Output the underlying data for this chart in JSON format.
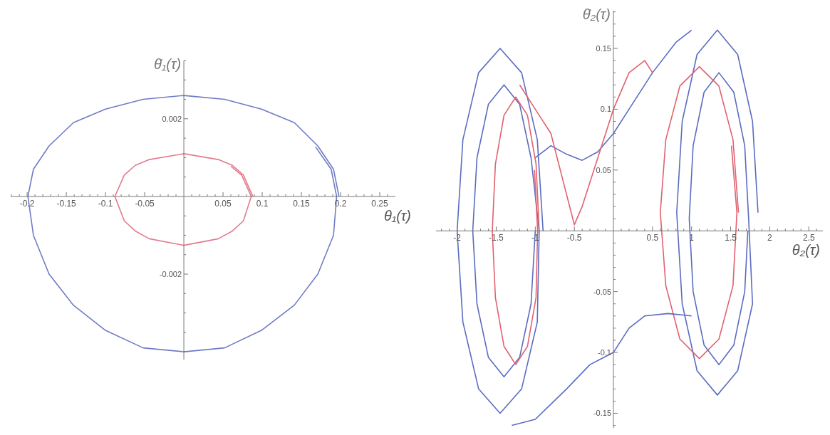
{
  "chart_data": [
    {
      "type": "line",
      "xlabel": "θ₁(τ)",
      "ylabel": "θ̇₁(τ)",
      "xlim": [
        -0.221,
        0.27
      ],
      "ylim": [
        -0.0042,
        0.0035
      ],
      "xticks": [
        {
          "value": -0.22,
          "label": null
        },
        {
          "value": -0.21,
          "label": null
        },
        -0.2,
        {
          "value": -0.19,
          "label": null
        },
        {
          "value": -0.18,
          "label": null
        },
        {
          "value": -0.17,
          "label": null
        },
        {
          "value": -0.16,
          "label": null
        },
        -0.15,
        {
          "value": -0.14,
          "label": null
        },
        {
          "value": -0.13,
          "label": null
        },
        {
          "value": -0.12,
          "label": null
        },
        {
          "value": -0.11,
          "label": null
        },
        -0.1,
        {
          "value": -0.09,
          "label": null
        },
        {
          "value": -0.08,
          "label": null
        },
        {
          "value": -0.07,
          "label": null
        },
        {
          "value": -0.06,
          "label": null
        },
        -0.05,
        {
          "value": -0.04,
          "label": null
        },
        {
          "value": -0.03,
          "label": null
        },
        {
          "value": -0.02,
          "label": null
        },
        {
          "value": -0.01,
          "label": null
        },
        {
          "value": 0.01,
          "label": null
        },
        {
          "value": 0.02,
          "label": null
        },
        {
          "value": 0.03,
          "label": null
        },
        {
          "value": 0.04,
          "label": null
        },
        0.05,
        {
          "value": 0.06,
          "label": null
        },
        {
          "value": 0.07,
          "label": null
        },
        {
          "value": 0.08,
          "label": null
        },
        {
          "value": 0.09,
          "label": null
        },
        0.1,
        {
          "value": 0.11,
          "label": null
        },
        {
          "value": 0.12,
          "label": null
        },
        {
          "value": 0.13,
          "label": null
        },
        {
          "value": 0.14,
          "label": null
        },
        0.15,
        {
          "value": 0.16,
          "label": null
        },
        {
          "value": 0.17,
          "label": null
        },
        {
          "value": 0.18,
          "label": null
        },
        {
          "value": 0.19,
          "label": null
        },
        0.2,
        {
          "value": 0.21,
          "label": null
        },
        {
          "value": 0.22,
          "label": null
        },
        {
          "value": 0.23,
          "label": null
        },
        {
          "value": 0.24,
          "label": null
        },
        0.25,
        {
          "value": 0.26,
          "label": null
        }
      ],
      "yticks": [
        {
          "value": -0.004,
          "label": null
        },
        {
          "value": -0.0035,
          "label": null
        },
        {
          "value": -0.003,
          "label": null
        },
        {
          "value": -0.0025,
          "label": null
        },
        -0.002,
        {
          "value": -0.0015,
          "label": null
        },
        {
          "value": -0.001,
          "label": null
        },
        {
          "value": -0.0005,
          "label": null
        },
        {
          "value": 0.0005,
          "label": null
        },
        {
          "value": 0.001,
          "label": null
        },
        {
          "value": 0.0015,
          "label": null
        },
        0.002,
        {
          "value": 0.0025,
          "label": null
        },
        {
          "value": 0.003,
          "label": null
        },
        {
          "value": 0.0035,
          "label": null
        }
      ],
      "series": [
        {
          "color": "#6f7cc6",
          "x": [
            0.198,
            0.191,
            0.171,
            0.141,
            0.099,
            0.052,
            0,
            -0.052,
            -0.1,
            -0.141,
            -0.172,
            -0.192,
            -0.199,
            -0.192,
            -0.172,
            -0.141,
            -0.1,
            -0.052,
            0,
            0.052,
            0.099,
            0.141,
            0.171,
            0.191,
            0.195,
            0.188,
            0.168
          ],
          "values": [
            0,
            0.0007,
            0.0013,
            0.0019,
            0.00225,
            0.0025,
            0.0026,
            0.0025,
            0.00225,
            0.0019,
            0.0013,
            0.0007,
            0,
            -0.001,
            -0.002,
            -0.0028,
            -0.00345,
            -0.0039,
            -0.004,
            -0.0039,
            -0.00345,
            -0.0028,
            -0.002,
            -0.001,
            0,
            0.0007,
            0.00128
          ]
        },
        {
          "color": "#e27b8c",
          "x": [
            0.088,
            0.076,
            0.062,
            0.044,
            0,
            -0.044,
            -0.062,
            -0.076,
            -0.088,
            -0.076,
            -0.062,
            -0.044,
            0,
            0.044,
            0.062,
            0.076,
            0.086,
            0.074,
            0.06
          ],
          "values": [
            0,
            0.00055,
            0.0008,
            0.00095,
            0.0011,
            0.00095,
            0.0008,
            0.00055,
            0,
            -0.00063,
            -0.00089,
            -0.00109,
            -0.00126,
            -0.00109,
            -0.00089,
            -0.00063,
            0,
            0.00054,
            0.00078
          ]
        }
      ]
    },
    {
      "type": "line",
      "xlabel": "θ₂(τ)",
      "ylabel": "θ̇₂(τ)",
      "xlim": [
        -2.27,
        2.68
      ],
      "ylim": [
        -0.162,
        0.181
      ],
      "xticks": [
        {
          "value": -2.2,
          "label": null
        },
        {
          "value": -2.1,
          "label": null
        },
        -2,
        {
          "value": -1.9,
          "label": null
        },
        {
          "value": -1.8,
          "label": null
        },
        {
          "value": -1.7,
          "label": null
        },
        {
          "value": -1.6,
          "label": null
        },
        -1.5,
        {
          "value": -1.4,
          "label": null
        },
        {
          "value": -1.3,
          "label": null
        },
        {
          "value": -1.2,
          "label": null
        },
        {
          "value": -1.1,
          "label": null
        },
        -1,
        {
          "value": -0.9,
          "label": null
        },
        {
          "value": -0.8,
          "label": null
        },
        {
          "value": -0.7,
          "label": null
        },
        {
          "value": -0.6,
          "label": null
        },
        -0.5,
        {
          "value": -0.4,
          "label": null
        },
        {
          "value": -0.3,
          "label": null
        },
        {
          "value": -0.2,
          "label": null
        },
        {
          "value": -0.1,
          "label": null
        },
        {
          "value": 0.1,
          "label": null
        },
        {
          "value": 0.2,
          "label": null
        },
        {
          "value": 0.3,
          "label": null
        },
        {
          "value": 0.4,
          "label": null
        },
        0.5,
        {
          "value": 0.6,
          "label": null
        },
        {
          "value": 0.7,
          "label": null
        },
        {
          "value": 0.8,
          "label": null
        },
        {
          "value": 0.9,
          "label": null
        },
        1,
        {
          "value": 1.1,
          "label": null
        },
        {
          "value": 1.2,
          "label": null
        },
        {
          "value": 1.3,
          "label": null
        },
        {
          "value": 1.4,
          "label": null
        },
        1.5,
        {
          "value": 1.6,
          "label": null
        },
        {
          "value": 1.7,
          "label": null
        },
        {
          "value": 1.8,
          "label": null
        },
        {
          "value": 1.9,
          "label": null
        },
        2,
        {
          "value": 2.1,
          "label": null
        },
        {
          "value": 2.2,
          "label": null
        },
        {
          "value": 2.3,
          "label": null
        },
        {
          "value": 2.4,
          "label": null
        },
        2.5,
        {
          "value": 2.6,
          "label": null
        }
      ],
      "yticks": [
        {
          "value": -0.16,
          "label": null
        },
        -0.15,
        {
          "value": -0.14,
          "label": null
        },
        {
          "value": -0.13,
          "label": null
        },
        {
          "value": -0.12,
          "label": null
        },
        {
          "value": -0.11,
          "label": null
        },
        -0.1,
        {
          "value": -0.09,
          "label": null
        },
        {
          "value": -0.08,
          "label": null
        },
        {
          "value": -0.07,
          "label": null
        },
        {
          "value": -0.06,
          "label": null
        },
        -0.05,
        {
          "value": -0.04,
          "label": null
        },
        {
          "value": -0.03,
          "label": null
        },
        {
          "value": -0.02,
          "label": null
        },
        {
          "value": -0.01,
          "label": null
        },
        {
          "value": 0.01,
          "label": null
        },
        {
          "value": 0.02,
          "label": null
        },
        {
          "value": 0.03,
          "label": null
        },
        {
          "value": 0.04,
          "label": null
        },
        0.05,
        {
          "value": 0.06,
          "label": null
        },
        {
          "value": 0.07,
          "label": null
        },
        {
          "value": 0.08,
          "label": null
        },
        {
          "value": 0.09,
          "label": null
        },
        0.1,
        {
          "value": 0.11,
          "label": null
        },
        {
          "value": 0.12,
          "label": null
        },
        {
          "value": 0.13,
          "label": null
        },
        {
          "value": 0.14,
          "label": null
        },
        0.15,
        {
          "value": 0.16,
          "label": null
        },
        {
          "value": 0.17,
          "label": null
        },
        {
          "value": 0.18,
          "label": null
        }
      ],
      "series": [
        {
          "color": "#5b6cc0",
          "x": [
            -0.9,
            -0.974,
            -1.175,
            -1.45,
            -1.725,
            -1.926,
            -2.0,
            -1.926,
            -1.725,
            -1.45,
            -1.175,
            -0.974,
            -0.95,
            -1.054,
            -1.2,
            -1.4,
            -1.6,
            -1.746,
            -1.8,
            -1.746,
            -1.6,
            -1.4,
            -1.2,
            -1.054,
            -1.0
          ],
          "values": [
            0,
            0.075,
            0.13,
            0.15,
            0.13,
            0.075,
            0,
            -0.075,
            -0.13,
            -0.15,
            -0.13,
            -0.075,
            0,
            0.06,
            0.104,
            0.12,
            0.104,
            0.06,
            0,
            -0.06,
            -0.104,
            -0.12,
            -0.104,
            -0.06,
            0
          ]
        },
        {
          "color": "#e2616f",
          "x": [
            -0.95,
            -0.99,
            -1.1,
            -1.25,
            -1.4,
            -1.51,
            -1.55,
            -1.51,
            -1.4,
            -1.25,
            -1.1,
            -0.99,
            -0.97,
            -1.01
          ],
          "values": [
            0,
            0.055,
            0.095,
            0.11,
            0.095,
            0.055,
            0,
            -0.055,
            -0.095,
            -0.11,
            -0.095,
            -0.055,
            0,
            0.05
          ]
        },
        {
          "color": "#5b6cc0",
          "x": [
            1.85,
            1.78,
            1.59,
            1.33,
            1.07,
            0.88,
            0.81,
            0.88,
            1.07,
            1.33,
            1.59,
            1.78,
            1.73,
            1.68,
            1.54,
            1.35,
            1.16,
            1.02,
            0.97,
            1.02,
            1.16,
            1.35,
            1.54,
            1.68,
            1.72
          ],
          "values": [
            0.015,
            0.09,
            0.145,
            0.165,
            0.145,
            0.09,
            0.015,
            -0.06,
            -0.115,
            -0.135,
            -0.115,
            -0.06,
            0.01,
            0.07,
            0.114,
            0.13,
            0.114,
            0.07,
            0.01,
            -0.05,
            -0.094,
            -0.11,
            -0.094,
            -0.05,
            0
          ]
        },
        {
          "color": "#e2616f",
          "x": [
            1.6,
            1.53,
            1.35,
            1.1,
            0.85,
            0.67,
            0.6,
            0.67,
            0.85,
            1.1,
            1.35,
            1.53,
            1.58,
            1.51
          ],
          "values": [
            0.015,
            0.075,
            0.119,
            0.135,
            0.119,
            0.075,
            0.015,
            -0.045,
            -0.089,
            -0.105,
            -0.089,
            -0.045,
            0.015,
            0.07
          ]
        },
        {
          "color": "#5b6cc0",
          "x": [
            -1.0,
            -0.8,
            -0.6,
            -0.4,
            -0.2,
            0,
            0.2,
            0.5,
            0.8,
            1.0
          ],
          "values": [
            0.06,
            0.07,
            0.063,
            0.058,
            0.065,
            0.08,
            0.1,
            0.13,
            0.155,
            0.165
          ]
        },
        {
          "color": "#5b6cc0",
          "x": [
            -1.3,
            -1.0,
            -0.6,
            -0.3,
            0,
            0.2,
            0.4,
            0.7,
            1.0
          ],
          "values": [
            -0.16,
            -0.155,
            -0.13,
            -0.11,
            -0.1,
            -0.08,
            -0.07,
            -0.068,
            -0.07
          ]
        },
        {
          "color": "#e2616f",
          "x": [
            -1.2,
            -0.8,
            -0.6,
            -0.5,
            -0.4,
            -0.2,
            0,
            0.2,
            0.4,
            0.5
          ],
          "values": [
            0.12,
            0.08,
            0.03,
            0.005,
            0.02,
            0.06,
            0.1,
            0.13,
            0.14,
            0.13
          ]
        }
      ]
    }
  ]
}
